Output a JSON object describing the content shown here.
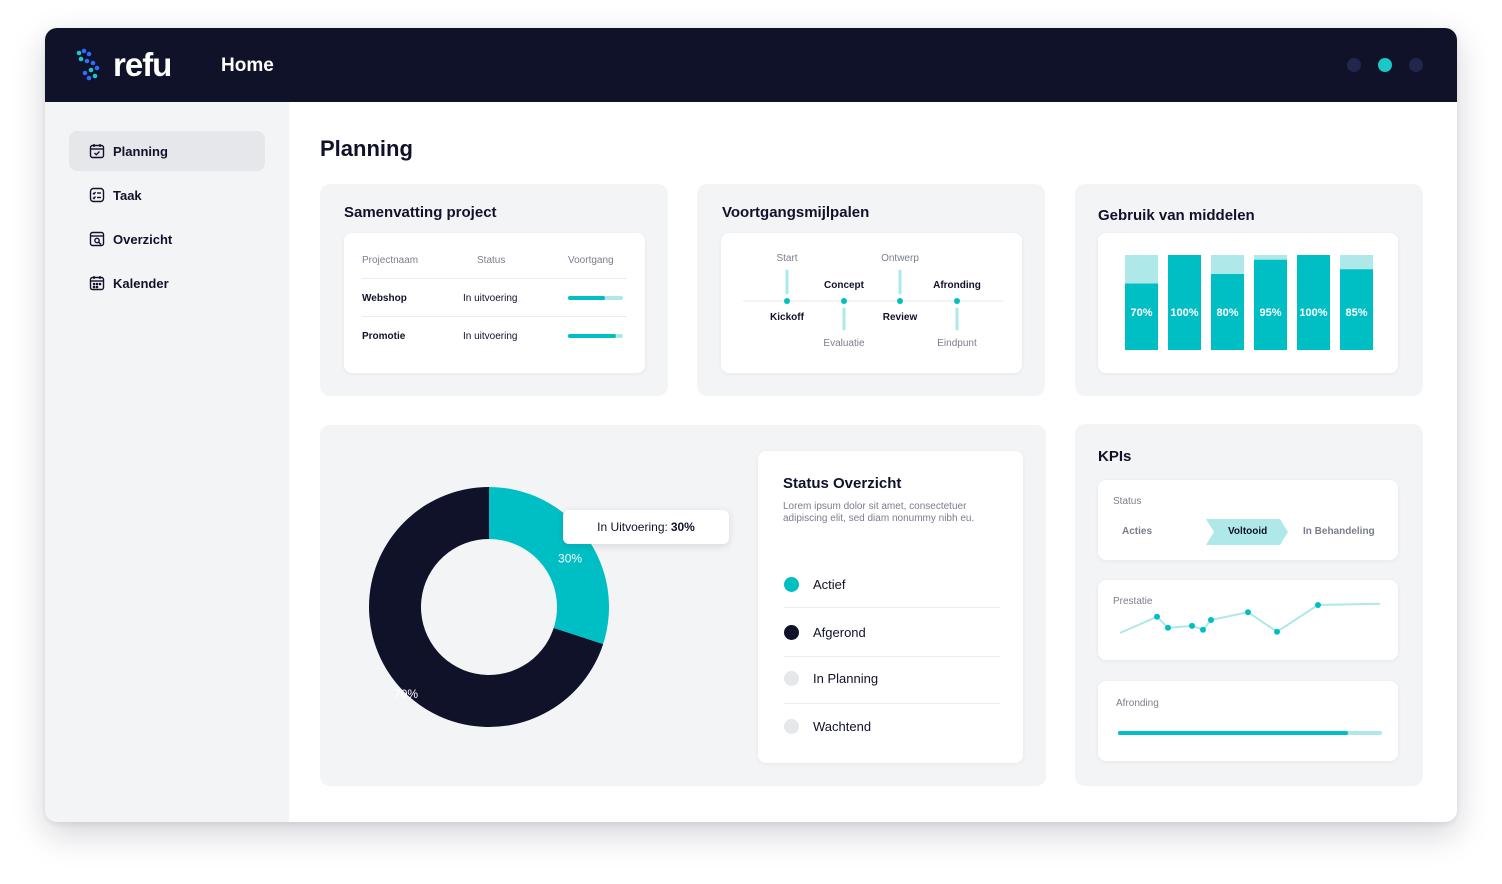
{
  "app": {
    "logo_text": "refu",
    "page_header": "Home"
  },
  "colors": {
    "navy": "#10122a",
    "teal": "#00bfc4",
    "teal_light": "#aee8e8",
    "bg_card": "#f3f4f6"
  },
  "sidebar": {
    "items": [
      {
        "label": "Planning",
        "icon": "calendar-check-icon",
        "active": true
      },
      {
        "label": "Taak",
        "icon": "task-list-icon",
        "active": false
      },
      {
        "label": "Overzicht",
        "icon": "overview-search-icon",
        "active": false
      },
      {
        "label": "Kalender",
        "icon": "calendar-icon",
        "active": false
      }
    ]
  },
  "main": {
    "title": "Planning"
  },
  "summary": {
    "title": "Samenvatting project",
    "headers": [
      "Projectnaam",
      "Status",
      "Voortgang"
    ],
    "rows": [
      {
        "name": "Webshop",
        "status": "In uitvoering",
        "progress": 0.68
      },
      {
        "name": "Promotie",
        "status": "In uitvoering",
        "progress": 0.88
      }
    ]
  },
  "milestones": {
    "title": "Voortgangsmijlpalen",
    "points": [
      {
        "top": "Start",
        "bottom": "Kickoff",
        "bottom_bold": true,
        "top_bold": false
      },
      {
        "top": "Concept",
        "bottom": "Evaluatie",
        "top_bold": true,
        "bottom_bold": false
      },
      {
        "top": "Ontwerp",
        "bottom": "Review",
        "bottom_bold": true,
        "top_bold": false
      },
      {
        "top": "Afronding",
        "bottom": "Eindpunt",
        "top_bold": true,
        "bottom_bold": false
      }
    ]
  },
  "resources": {
    "title": "Gebruik van middelen",
    "chart_data": {
      "type": "bar",
      "categories": [
        "",
        "",
        "",
        "",
        "",
        ""
      ],
      "values": [
        70,
        100,
        80,
        95,
        100,
        85
      ],
      "value_labels": [
        "70%",
        "100%",
        "80%",
        "95%",
        "100%",
        "85%"
      ],
      "ylim": [
        0,
        100
      ],
      "grid": false
    }
  },
  "status": {
    "chart_data": {
      "type": "pie",
      "labels": [
        "In Uitvoering",
        "Afgerond"
      ],
      "values": [
        30,
        70
      ],
      "value_labels": [
        "30%",
        "70%"
      ],
      "colors": [
        "#00bfc4",
        "#10122a"
      ]
    },
    "tooltip_label": "In Uitvoering:",
    "tooltip_value": "30%",
    "overview": {
      "title": "Status Overzicht",
      "description": "Lorem ipsum dolor sit amet, consectetuer adipiscing elit, sed diam nonummy nibh eu.",
      "legend": [
        {
          "label": "Actief",
          "color": "#00bfc4"
        },
        {
          "label": "Afgerond",
          "color": "#10122a"
        },
        {
          "label": "In Planning",
          "color": "#e6e7eb"
        },
        {
          "label": "Wachtend",
          "color": "#e6e7eb"
        }
      ]
    }
  },
  "kpis": {
    "title": "KPIs",
    "status_label": "Status",
    "tabs": [
      "Acties",
      "Voltooid",
      "In Behandeling"
    ],
    "active_tab": "Voltooid",
    "performance_label": "Prestatie",
    "chart_data": {
      "type": "line",
      "values": [
        20,
        45,
        28,
        31,
        25,
        40,
        52,
        22,
        63,
        65
      ],
      "ylim": [
        0,
        80
      ],
      "grid": false
    },
    "completion_label": "Afronding",
    "completion_progress": 0.87
  }
}
